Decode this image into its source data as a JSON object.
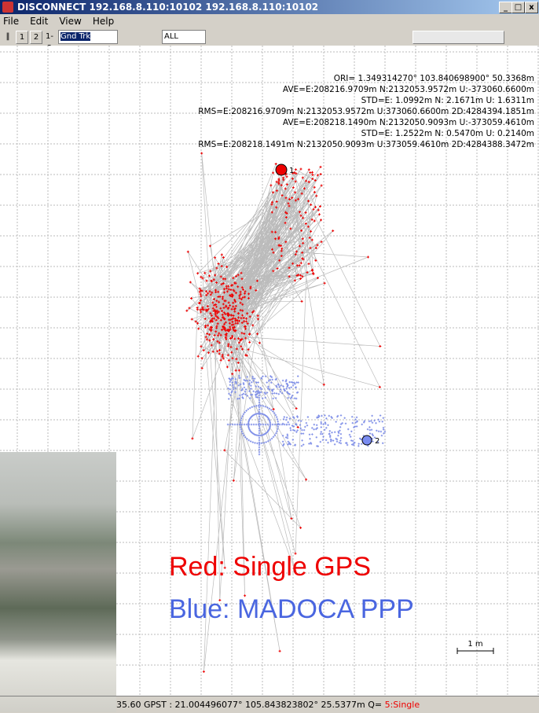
{
  "window": {
    "title": "DISCONNECT 192.168.8.110:10102 192.168.8.110:10102"
  },
  "menu": [
    "File",
    "Edit",
    "View",
    "Help"
  ],
  "toolbar": {
    "buttons": [
      "1",
      "2",
      "1-2"
    ],
    "plot_type": "Gnd Trk",
    "satellites": "ALL"
  },
  "stats": [
    "ORI= 1.349314270° 103.840698900° 50.3368m",
    "AVE=E:208216.9709m N:2132053.9572m U:-373060.6600m",
    "STD=E: 1.0992m N: 2.1671m U: 1.6311m",
    "RMS=E:208216.9709m N:2132053.9572m U:373060.6600m 2D:4284394.1851m",
    "AVE=E:208218.1490m N:2132050.9093m U:-373059.4610m",
    "STD=E: 1.2522m N: 0.5470m U: 0.2140m",
    "RMS=E:208218.1491m N:2132050.9093m U:373059.4610m 2D:4284388.3472m"
  ],
  "markers": [
    "1",
    "2"
  ],
  "legend": [
    "Red: Single GPS",
    "Blue: MADOCA PPP"
  ],
  "scale_label": "1 m",
  "status": {
    "text": "35.60 GPST : 21.004496077° 105.843823802°  25.5377m  Q=",
    "quality": "5:Single"
  }
}
